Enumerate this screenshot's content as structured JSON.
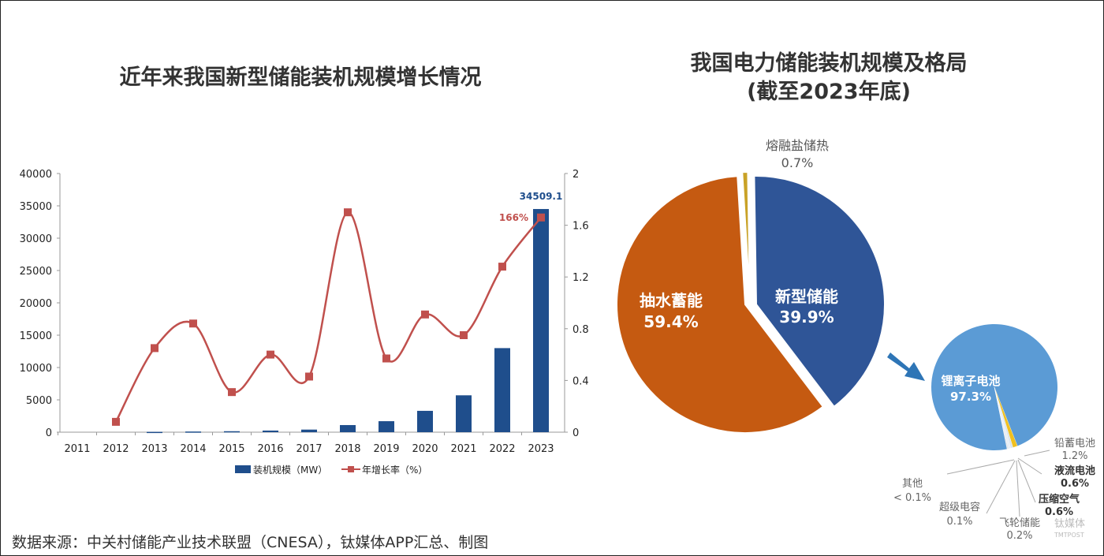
{
  "chart_data": [
    {
      "type": "bar+line",
      "title": "近年来我国新型储能装机规模增长情况",
      "categories": [
        "2011",
        "2012",
        "2013",
        "2014",
        "2015",
        "2016",
        "2017",
        "2018",
        "2019",
        "2020",
        "2021",
        "2022",
        "2023"
      ],
      "series": [
        {
          "name": "装机规模（MW）",
          "type": "bar",
          "axis": "left",
          "color": "#1f4e8c",
          "values": [
            0,
            0,
            50,
            100,
            150,
            250,
            400,
            1100,
            1700,
            3300,
            5700,
            13000,
            34509.1
          ]
        },
        {
          "name": "年增长率（%）",
          "type": "line",
          "axis": "right",
          "color": "#c0504d",
          "values": [
            null,
            0.08,
            0.65,
            0.84,
            0.31,
            0.6,
            0.43,
            1.7,
            0.57,
            0.91,
            0.75,
            1.28,
            1.66
          ]
        }
      ],
      "annotations": [
        "34509.1",
        "166%"
      ],
      "ylim_left": [
        0,
        40000
      ],
      "yticks_left": [
        "0",
        "5000",
        "10000",
        "15000",
        "20000",
        "25000",
        "30000",
        "35000",
        "40000"
      ],
      "ylim_right": [
        0,
        2
      ],
      "yticks_right": [
        "0",
        "0.4",
        "0.8",
        "1.2",
        "1.6",
        "2"
      ],
      "legend": "bottom"
    },
    {
      "type": "pie",
      "title": "我国电力储能装机规模及格局",
      "subtitle": "(截至2023年底)",
      "slices": [
        {
          "label": "抽水蓄能",
          "value": 59.4,
          "display": "59.4%",
          "color": "#c55a11"
        },
        {
          "label": "新型储能",
          "value": 39.9,
          "display": "39.9%",
          "color": "#2f5597"
        },
        {
          "label": "熔融盐储热",
          "value": 0.7,
          "display": "0.7%",
          "color": "#c9a227"
        }
      ]
    },
    {
      "type": "pie",
      "slices": [
        {
          "label": "锂离子电池",
          "value": 97.3,
          "display": "97.3%",
          "color": "#5b9bd5"
        },
        {
          "label": "铅蓄电池",
          "value": 1.2,
          "display": "1.2%",
          "color": "#f0c020"
        },
        {
          "label": "液流电池",
          "value": 0.6,
          "display": "0.6%",
          "color": "#d9e4f0"
        },
        {
          "label": "压缩空气",
          "value": 0.6,
          "display": "0.6%",
          "color": "#e8eef5"
        },
        {
          "label": "飞轮储能",
          "value": 0.2,
          "display": "0.2%",
          "color": "#cfd8e3"
        },
        {
          "label": "超级电容",
          "value": 0.1,
          "display": "0.1%",
          "color": "#bfc9d6"
        },
        {
          "label": "其他",
          "value": 0.05,
          "display": "< 0.1%",
          "color": "#a0a0a0"
        }
      ]
    }
  ],
  "source": "数据来源：中关村储能产业技术联盟（CNESA），钛媒体APP汇总、制图",
  "watermark": "钛媒体 TMTPOST"
}
